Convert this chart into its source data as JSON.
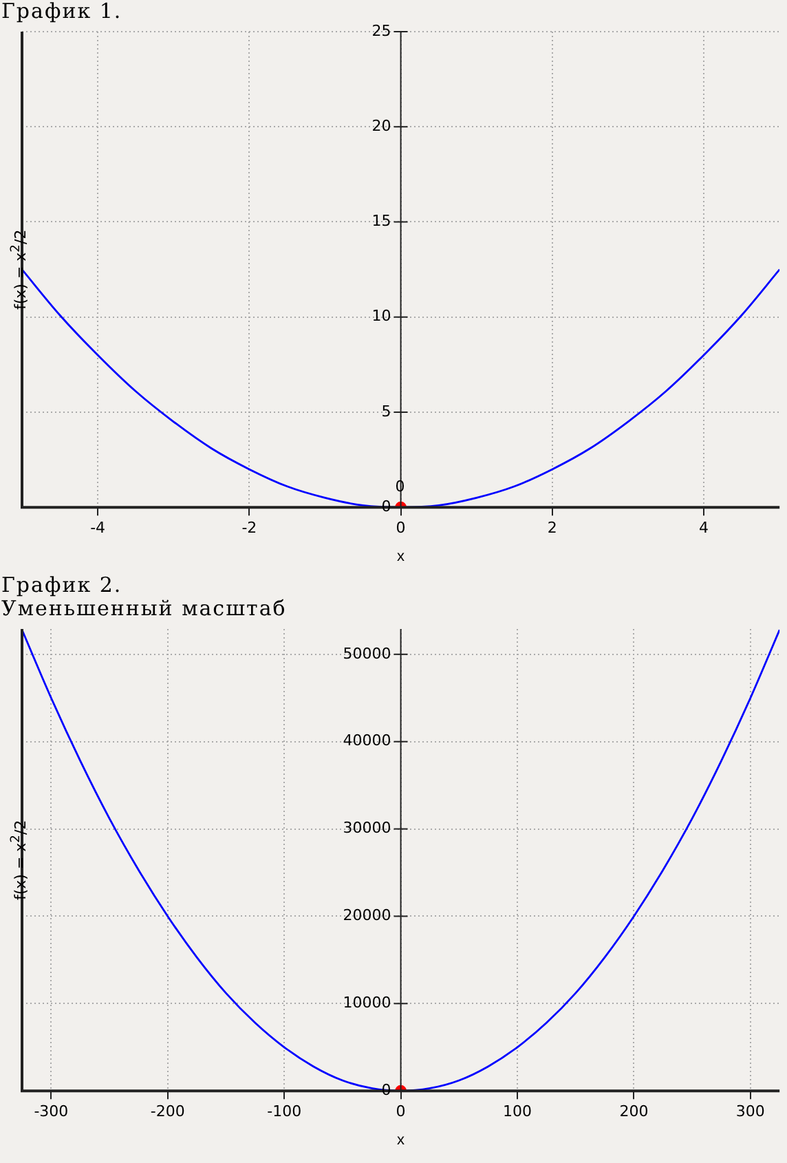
{
  "chart_data": [
    {
      "type": "line",
      "title": "График 1.",
      "xlabel": "x",
      "ylabel": "f(x) = x$^{2}$/2",
      "xlim": [
        -5,
        5
      ],
      "ylim": [
        0,
        25
      ],
      "xticks": [
        -4,
        -2,
        0,
        2,
        4
      ],
      "yticks": [
        0,
        5,
        10,
        15,
        20,
        25
      ],
      "grid": true,
      "series": [
        {
          "type": "line",
          "color": "#0000ff",
          "marker": "none",
          "x": [
            -5,
            -4.5,
            -4,
            -3.5,
            -3,
            -2.5,
            -2,
            -1.5,
            -1,
            -0.5,
            0,
            0.5,
            1,
            1.5,
            2,
            2.5,
            3,
            3.5,
            4,
            4.5,
            5
          ],
          "values": [
            12.5,
            10.1,
            8,
            6.1,
            4.5,
            3.1,
            2,
            1.1,
            0.5,
            0.1,
            0,
            0.1,
            0.5,
            1.1,
            2,
            3.1,
            4.5,
            6.1,
            8,
            10.1,
            12.5
          ]
        },
        {
          "type": "scatter",
          "color": "#ff0000",
          "marker": "circle",
          "x": [
            0
          ],
          "values": [
            0
          ]
        }
      ],
      "annotations": [
        {
          "text": "0",
          "x": 0,
          "y": 0
        }
      ]
    },
    {
      "type": "line",
      "title": "График 2.",
      "subtitle": "Уменьшенный масштаб",
      "xlabel": "x",
      "ylabel": "f(x) = x$^{2}$/2",
      "xlim": [
        -325,
        325
      ],
      "ylim": [
        0,
        52900
      ],
      "xticks": [
        -300,
        -200,
        -100,
        0,
        100,
        200,
        300
      ],
      "yticks": [
        0,
        10000,
        20000,
        30000,
        40000,
        50000
      ],
      "grid": true,
      "series": [
        {
          "type": "line",
          "color": "#0000ff",
          "marker": "none",
          "x": [
            -325,
            -300,
            -275,
            -250,
            -225,
            -200,
            -175,
            -150,
            -125,
            -100,
            -75,
            -50,
            -25,
            0,
            25,
            50,
            75,
            100,
            125,
            150,
            175,
            200,
            225,
            250,
            275,
            300,
            325
          ],
          "values": [
            52800,
            45000,
            37800,
            31200,
            25300,
            20000,
            15300,
            11200,
            7800,
            5000,
            2800,
            1200,
            300,
            0,
            300,
            1200,
            2800,
            5000,
            7800,
            11200,
            15300,
            20000,
            25300,
            31200,
            37800,
            45000,
            52800
          ]
        },
        {
          "type": "scatter",
          "color": "#ff0000",
          "marker": "circle",
          "x": [
            0
          ],
          "values": [
            0
          ]
        }
      ]
    }
  ]
}
